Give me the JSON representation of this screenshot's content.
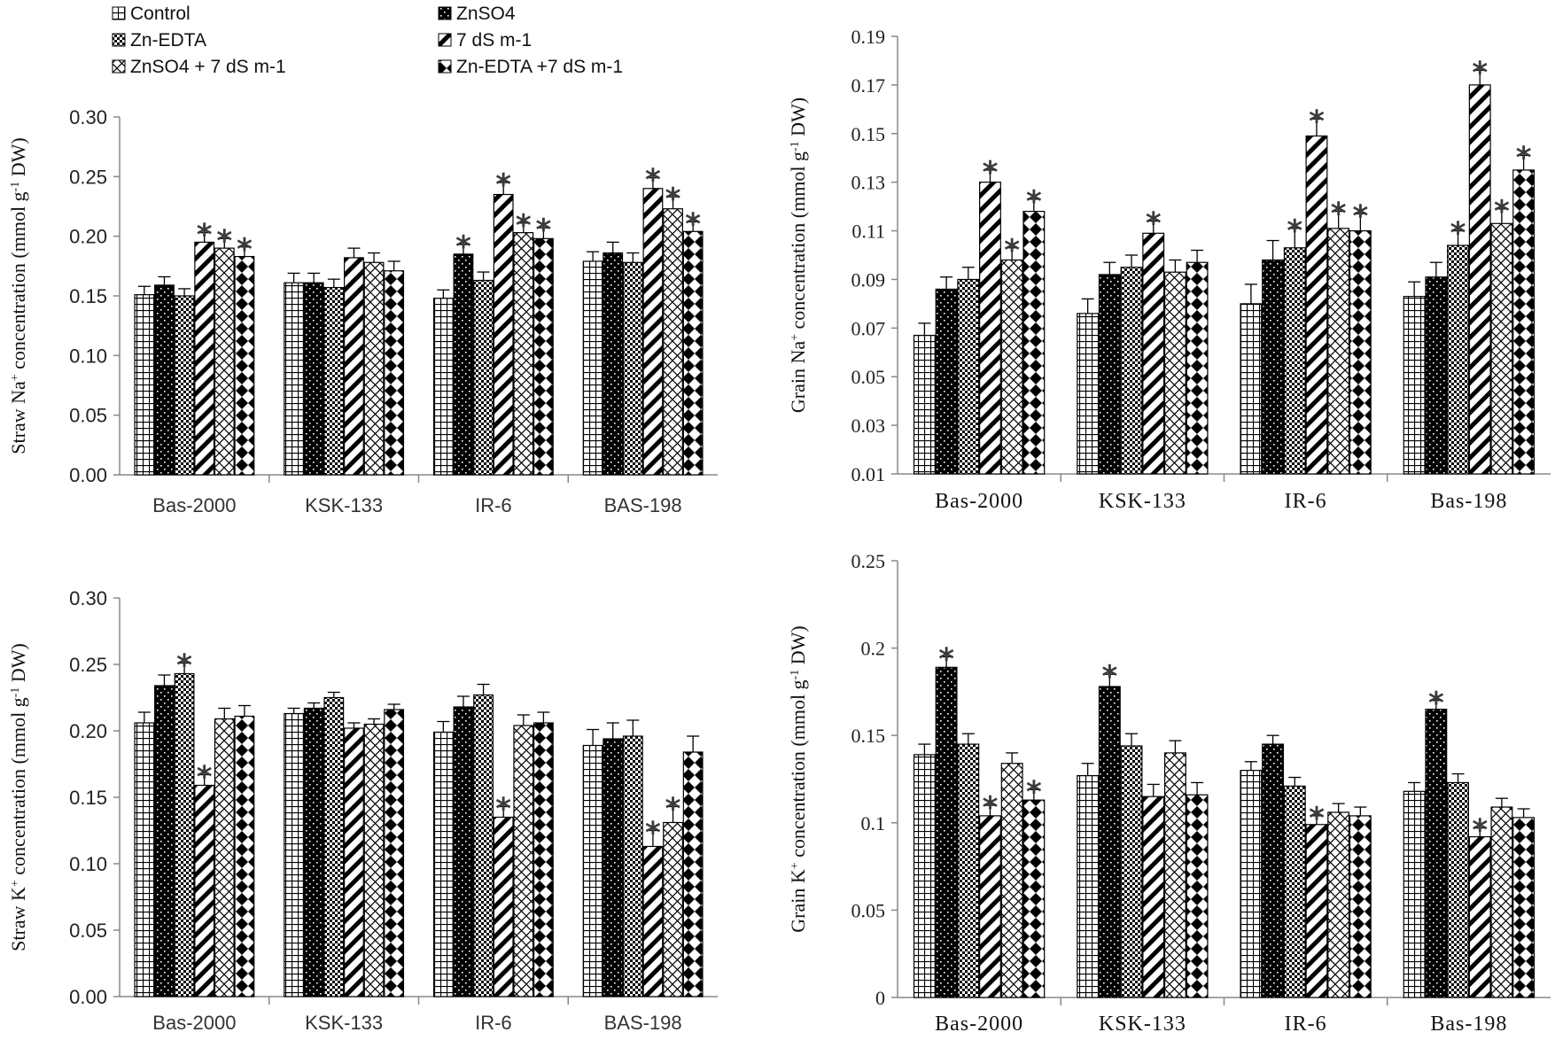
{
  "legend": {
    "items": [
      {
        "label": "Control",
        "pattern": "grid"
      },
      {
        "label": "ZnSO4",
        "pattern": "dots"
      },
      {
        "label": "Zn-EDTA",
        "pattern": "checker"
      },
      {
        "label": "7 dS m-1",
        "pattern": "diag"
      },
      {
        "label": "ZnSO4 + 7 dS m-1",
        "pattern": "cross"
      },
      {
        "label": "Zn-EDTA +7 dS m-1",
        "pattern": "diamond"
      }
    ]
  },
  "colors": {
    "bar_fill": "#ffffff",
    "ink": "#000000",
    "axis": "#888888",
    "star": "#3a3a3a"
  },
  "chart_data": [
    {
      "type": "bar",
      "id": "straw-na",
      "ylabel": [
        "Straw Na",
        "+",
        " concentration (mmol g",
        "-1",
        " DW)"
      ],
      "ylim": [
        0,
        0.3
      ],
      "yticks": [
        0.0,
        0.05,
        0.1,
        0.15,
        0.2,
        0.25,
        0.3
      ],
      "ytick_labels": [
        "0.00",
        "0.05",
        "0.10",
        "0.15",
        "0.20",
        "0.25",
        "0.30"
      ],
      "categories": [
        "Bas-2000",
        "KSK-133",
        "IR-6",
        "BAS-198"
      ],
      "series_names": [
        "Control",
        "ZnSO4",
        "Zn-EDTA",
        "7 dS m-1",
        "ZnSO4 + 7 dS m-1",
        "Zn-EDTA +7 dS m-1"
      ],
      "values": [
        [
          0.151,
          0.159,
          0.15,
          0.195,
          0.19,
          0.183
        ],
        [
          0.161,
          0.161,
          0.157,
          0.182,
          0.178,
          0.171
        ],
        [
          0.148,
          0.185,
          0.163,
          0.235,
          0.203,
          0.198
        ],
        [
          0.179,
          0.186,
          0.178,
          0.24,
          0.223,
          0.204
        ]
      ],
      "errors": [
        [
          0.007,
          0.007,
          0.006,
          0.008,
          0.008,
          0.008
        ],
        [
          0.008,
          0.008,
          0.007,
          0.008,
          0.008,
          0.008
        ],
        [
          0.007,
          0.008,
          0.007,
          0.01,
          0.008,
          0.009
        ],
        [
          0.008,
          0.009,
          0.008,
          0.009,
          0.01,
          0.008
        ]
      ],
      "stars": [
        [
          0,
          0,
          0,
          1,
          1,
          1
        ],
        [
          0,
          0,
          0,
          0,
          0,
          0
        ],
        [
          0,
          1,
          0,
          1,
          1,
          1
        ],
        [
          0,
          0,
          0,
          1,
          1,
          1
        ]
      ],
      "style": "sans"
    },
    {
      "type": "bar",
      "id": "grain-na",
      "ylabel": [
        "Grain Na",
        "+",
        " concentration (mmol g",
        "-1",
        " DW)"
      ],
      "ylim": [
        0.01,
        0.19
      ],
      "yticks": [
        0.01,
        0.03,
        0.05,
        0.07,
        0.09,
        0.11,
        0.13,
        0.15,
        0.17,
        0.19
      ],
      "ytick_labels": [
        "0.01",
        "0.03",
        "0.05",
        "0.07",
        "0.09",
        "0.11",
        "0.13",
        "0.15",
        "0.17",
        "0.19"
      ],
      "categories": [
        "Bas-2000",
        "KSK-133",
        "IR-6",
        "Bas-198"
      ],
      "series_names": [
        "Control",
        "ZnSO4",
        "Zn-EDTA",
        "7 dS m-1",
        "ZnSO4 + 7 dS m-1",
        "Zn-EDTA +7 dS m-1"
      ],
      "values": [
        [
          0.067,
          0.086,
          0.09,
          0.13,
          0.098,
          0.118
        ],
        [
          0.076,
          0.092,
          0.095,
          0.109,
          0.093,
          0.097
        ],
        [
          0.08,
          0.098,
          0.103,
          0.149,
          0.111,
          0.11
        ],
        [
          0.083,
          0.091,
          0.104,
          0.17,
          0.113,
          0.135
        ]
      ],
      "errors": [
        [
          0.005,
          0.005,
          0.005,
          0.005,
          0.005,
          0.005
        ],
        [
          0.006,
          0.005,
          0.005,
          0.005,
          0.005,
          0.005
        ],
        [
          0.008,
          0.008,
          0.008,
          0.007,
          0.007,
          0.007
        ],
        [
          0.006,
          0.006,
          0.006,
          0.006,
          0.006,
          0.006
        ]
      ],
      "stars": [
        [
          0,
          0,
          0,
          1,
          1,
          1
        ],
        [
          0,
          0,
          0,
          1,
          0,
          0
        ],
        [
          0,
          0,
          1,
          1,
          1,
          1
        ],
        [
          0,
          0,
          1,
          1,
          1,
          1
        ]
      ],
      "style": "serif"
    },
    {
      "type": "bar",
      "id": "straw-k",
      "ylabel": [
        "Straw K",
        "+",
        " concentration (mmol g",
        "-1",
        " DW)"
      ],
      "ylim": [
        0,
        0.3
      ],
      "yticks": [
        0.0,
        0.05,
        0.1,
        0.15,
        0.2,
        0.25,
        0.3
      ],
      "ytick_labels": [
        "0.00",
        "0.05",
        "0.10",
        "0.15",
        "0.20",
        "0.25",
        "0.30"
      ],
      "categories": [
        "Bas-2000",
        "KSK-133",
        "IR-6",
        "BAS-198"
      ],
      "series_names": [
        "Control",
        "ZnSO4",
        "Zn-EDTA",
        "7 dS m-1",
        "ZnSO4 + 7 dS m-1",
        "Zn-EDTA +7 dS m-1"
      ],
      "values": [
        [
          0.206,
          0.234,
          0.243,
          0.159,
          0.209,
          0.211
        ],
        [
          0.213,
          0.217,
          0.225,
          0.202,
          0.205,
          0.216
        ],
        [
          0.199,
          0.218,
          0.227,
          0.135,
          0.204,
          0.206
        ],
        [
          0.189,
          0.194,
          0.196,
          0.113,
          0.131,
          0.184
        ]
      ],
      "errors": [
        [
          0.008,
          0.008,
          0.008,
          0.008,
          0.008,
          0.008
        ],
        [
          0.004,
          0.004,
          0.004,
          0.004,
          0.004,
          0.004
        ],
        [
          0.008,
          0.008,
          0.008,
          0.008,
          0.008,
          0.008
        ],
        [
          0.012,
          0.012,
          0.012,
          0.012,
          0.012,
          0.012
        ]
      ],
      "stars": [
        [
          0,
          0,
          1,
          1,
          0,
          0
        ],
        [
          0,
          0,
          0,
          0,
          0,
          0
        ],
        [
          0,
          0,
          0,
          1,
          0,
          0
        ],
        [
          0,
          0,
          0,
          1,
          1,
          0
        ]
      ],
      "style": "sans"
    },
    {
      "type": "bar",
      "id": "grain-k",
      "ylabel": [
        "Grain K",
        "+",
        " concentration (mmol g",
        "-1",
        " DW)"
      ],
      "ylim": [
        0,
        0.25
      ],
      "yticks": [
        0,
        0.05,
        0.1,
        0.15,
        0.2,
        0.25
      ],
      "ytick_labels": [
        "0",
        "0.05",
        "0.1",
        "0.15",
        "0.2",
        "0.25"
      ],
      "categories": [
        "Bas-2000",
        "KSK-133",
        "IR-6",
        "Bas-198"
      ],
      "series_names": [
        "Control",
        "ZnSO4",
        "Zn-EDTA",
        "7 dS m-1",
        "ZnSO4 + 7 dS m-1",
        "Zn-EDTA +7 dS m-1"
      ],
      "values": [
        [
          0.139,
          0.189,
          0.145,
          0.104,
          0.134,
          0.113
        ],
        [
          0.127,
          0.178,
          0.144,
          0.115,
          0.14,
          0.116
        ],
        [
          0.13,
          0.145,
          0.121,
          0.099,
          0.106,
          0.104
        ],
        [
          0.118,
          0.165,
          0.123,
          0.092,
          0.109,
          0.103
        ]
      ],
      "errors": [
        [
          0.006,
          0.006,
          0.006,
          0.006,
          0.006,
          0.006
        ],
        [
          0.007,
          0.007,
          0.007,
          0.007,
          0.007,
          0.007
        ],
        [
          0.005,
          0.005,
          0.005,
          0.005,
          0.005,
          0.005
        ],
        [
          0.005,
          0.005,
          0.005,
          0.005,
          0.005,
          0.005
        ]
      ],
      "stars": [
        [
          0,
          1,
          0,
          1,
          0,
          1
        ],
        [
          0,
          1,
          0,
          0,
          0,
          0
        ],
        [
          0,
          0,
          0,
          1,
          0,
          0
        ],
        [
          0,
          1,
          0,
          1,
          0,
          0
        ]
      ],
      "style": "serif"
    }
  ]
}
